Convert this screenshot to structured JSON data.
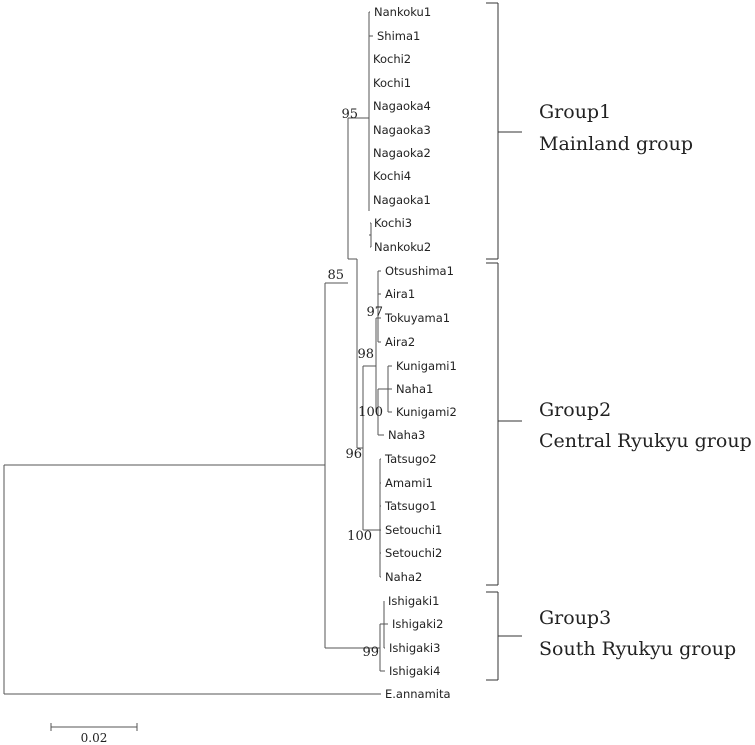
{
  "taxa": [
    "Nankoku1",
    "Shima1",
    "Kochi2",
    "Kochi1",
    "Nagaoka4",
    "Nagaoka3",
    "Nagaoka2",
    "Kochi4",
    "Nagaoka1",
    "Kochi3",
    "Nankoku2",
    "Otsushima1",
    "Aira1",
    "Tokuyama1",
    "Aira2",
    "Kunigami1",
    "Naha1",
    "Kunigami2",
    "Naha3",
    "Tatsugo2",
    "Amami1",
    "Tatsugo1",
    "Setouchi1",
    "Setouchi2",
    "Naha2",
    "Ishigaki1",
    "Ishigaki2",
    "Ishigaki3",
    "Ishigaki4",
    "E.annamita"
  ],
  "support_values": [
    "95",
    "85",
    "97",
    "98",
    "100",
    "96",
    "100",
    "99"
  ],
  "groups": [
    {
      "name": "Group1",
      "description": "Mainland group"
    },
    {
      "name": "Group2",
      "description": "Central Ryukyu group"
    },
    {
      "name": "Group3",
      "description": "South Ryukyu group"
    }
  ],
  "scale_bar": {
    "label": "0.02"
  }
}
